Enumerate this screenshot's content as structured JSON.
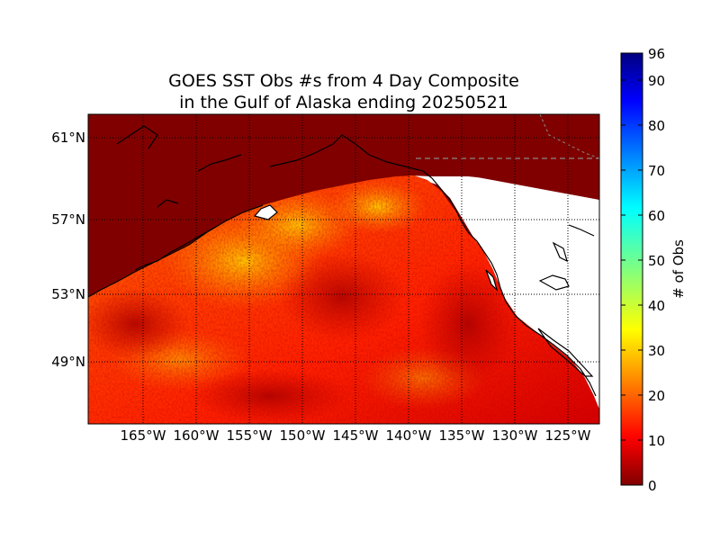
{
  "title_line1": "GOES SST Obs #s from 4 Day Composite",
  "title_line2": "in the Gulf of Alaska ending 20250521",
  "lat_labels": [
    "61°N",
    "57°N",
    "53°N",
    "49°N"
  ],
  "lon_labels": [
    "165°W",
    "160°W",
    "155°W",
    "150°W",
    "145°W",
    "140°W",
    "135°W",
    "130°W",
    "125°W"
  ],
  "colorbar": {
    "label": "# of Obs",
    "min": 0,
    "max": 96,
    "ticks": [
      "0",
      "10",
      "20",
      "30",
      "40",
      "50",
      "60",
      "70",
      "80",
      "90",
      "96"
    ],
    "colormap": "jet"
  },
  "colors": {
    "land": "#800000",
    "no_data": "#ffffff",
    "coastline": "#000000",
    "grid": "#000000"
  }
}
